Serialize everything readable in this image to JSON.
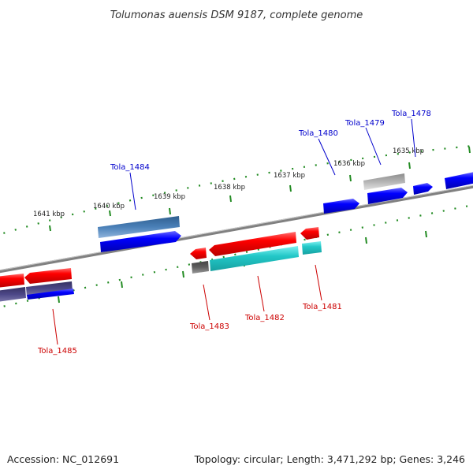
{
  "title": "Tolumonas auensis DSM 9187, complete genome",
  "footer": {
    "accession": "Accession: NC_012691",
    "stats": "Topology: circular; Length: 3,471,292 bp; Genes: 3,246"
  },
  "ruler": {
    "ticks": [
      "1641 kbp",
      "1640 kbp",
      "1639 kbp",
      "1638 kbp",
      "1637 kbp",
      "1636 kbp",
      "1635 kbp"
    ]
  },
  "genes": {
    "forward": [
      {
        "label": "Tola_1484",
        "color": "#0000ff"
      },
      {
        "label": "Tola_1480",
        "color": "#0000ff"
      },
      {
        "label": "Tola_1479",
        "color": "#0000ff"
      },
      {
        "label": "Tola_1478",
        "color": "#0000ff"
      }
    ],
    "reverse": [
      {
        "label": "Tola_1485",
        "color": "#ff0000"
      },
      {
        "label": "Tola_1483",
        "color": "#ff0000"
      },
      {
        "label": "Tola_1482",
        "color": "#ff0000"
      },
      {
        "label": "Tola_1481",
        "color": "#ff0000"
      }
    ]
  },
  "colors": {
    "forward_cds": "#0000ff",
    "reverse_cds": "#ff0000",
    "forward_label": "#0000cc",
    "reverse_label": "#cc0000",
    "feature_steel": "#4a80b8",
    "feature_cyan": "#22c8c8",
    "feature_gray": "#a8a8a8",
    "feature_dark": "#555555",
    "feature_navy": "#45407a",
    "backbone": "#808080",
    "ruler_tick": "#228b22"
  }
}
